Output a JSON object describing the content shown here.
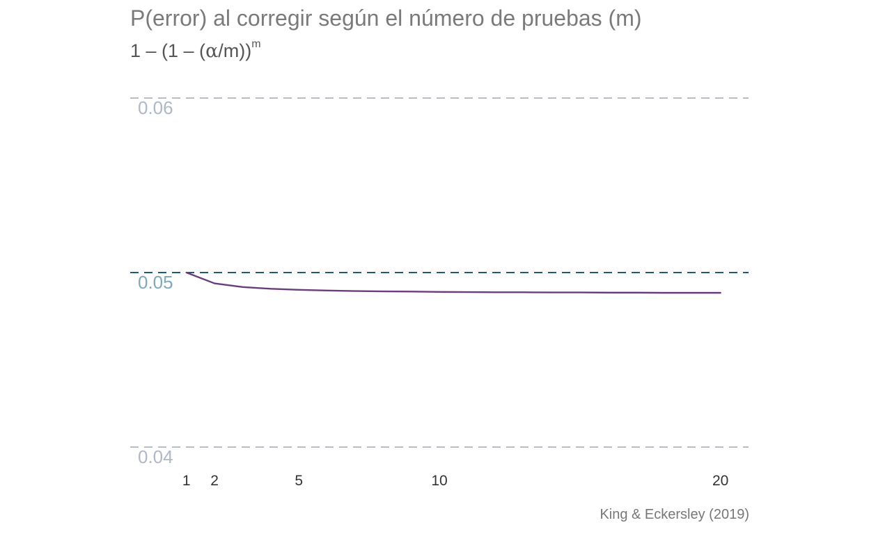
{
  "chart_data": {
    "type": "line",
    "title": "P(error) al corregir según el número de pruebas (m)",
    "subtitle": {
      "prefix": "1 – (1 – (",
      "alpha": "α",
      "middle": "/m))",
      "exponent": "m"
    },
    "caption": "King & Eckersley (2019)",
    "xlabel": "",
    "ylabel": "",
    "x_ticks": [
      1,
      2,
      5,
      10,
      20
    ],
    "y_ticks": [
      "0.04",
      "0.05",
      "0.06"
    ],
    "y_tick_values": [
      0.04,
      0.05,
      0.06
    ],
    "xlim": [
      -1,
      21
    ],
    "ylim": [
      0.04,
      0.06
    ],
    "reference_line": {
      "y": 0.05,
      "color": "#1f5a6e"
    },
    "grid": true,
    "grid_color": "#b8bec8",
    "series": [
      {
        "color": "#6b3c7d",
        "x": [
          1,
          2,
          3,
          4,
          5,
          6,
          7,
          8,
          9,
          10,
          11,
          12,
          13,
          14,
          15,
          16,
          17,
          18,
          19,
          20
        ],
        "values": [
          0.05,
          0.04938,
          0.04917,
          0.04907,
          0.04901,
          0.04897,
          0.04894,
          0.04892,
          0.04891,
          0.04889,
          0.04888,
          0.04887,
          0.04887,
          0.04886,
          0.04886,
          0.04885,
          0.04885,
          0.04884,
          0.04884,
          0.04884
        ]
      }
    ]
  }
}
